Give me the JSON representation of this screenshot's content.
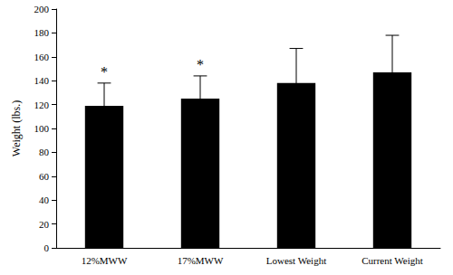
{
  "chart_data": {
    "type": "bar",
    "y_label": "Weight (lbs.)",
    "categories": [
      "12%MWW",
      "17%MWW",
      "Lowest Weight",
      "Current Weight"
    ],
    "values": [
      119,
      125,
      138,
      147
    ],
    "errors": [
      19,
      19,
      29,
      31
    ],
    "annotations": [
      "*",
      "*",
      null,
      null
    ],
    "color": "#000000",
    "ylim": [
      0,
      200
    ],
    "yticks": [
      0,
      20,
      40,
      60,
      80,
      100,
      120,
      140,
      160,
      180,
      200
    ],
    "grid": false
  }
}
